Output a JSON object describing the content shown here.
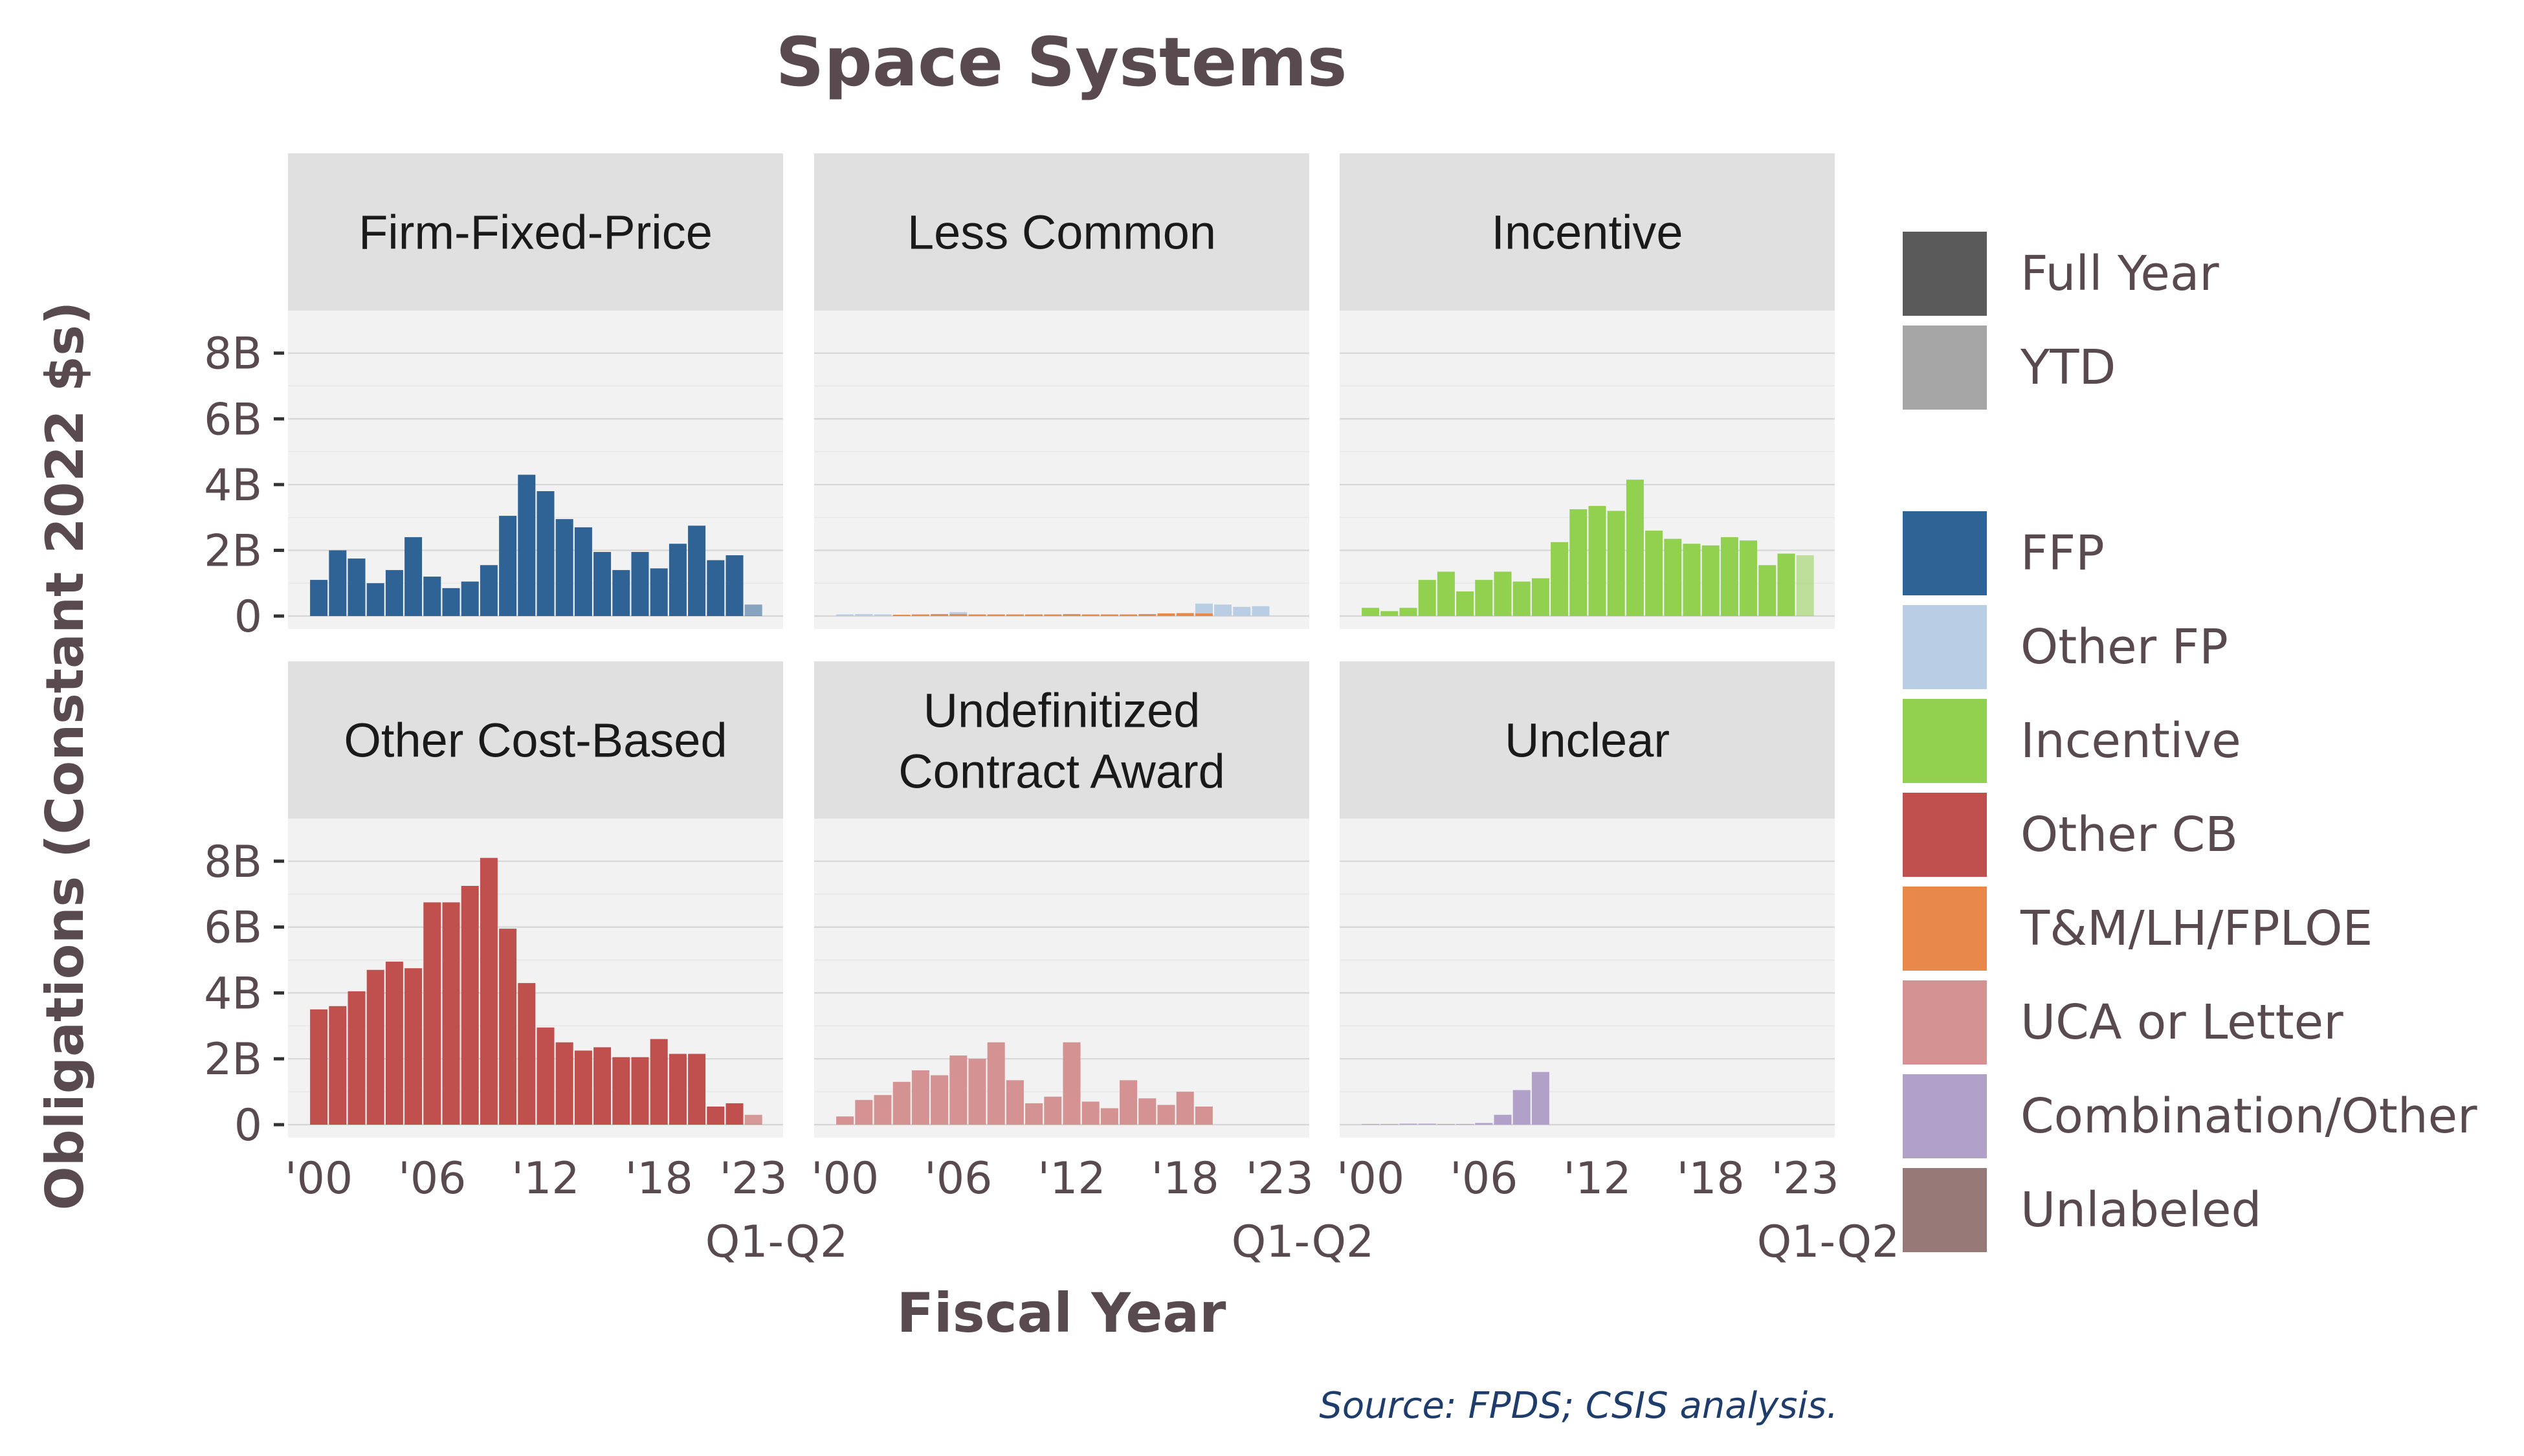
{
  "chart_data": {
    "type": "bar",
    "title": "Space Systems",
    "xlabel": "Fiscal Year",
    "ylabel": "Obligations (Constant 2022 $s)",
    "source": "Source: FPDS; CSIS analysis.",
    "ylim": [
      0,
      8.9
    ],
    "yticks": [
      0,
      2,
      4,
      6,
      8
    ],
    "ytick_labels": [
      "0",
      "2B",
      "4B",
      "6B",
      "8B"
    ],
    "xticks": [
      2000,
      2006,
      2012,
      2018,
      2023
    ],
    "xtick_labels": [
      "'00",
      "'06",
      "'12",
      "'18",
      "'23"
    ],
    "xtick_sublabel": "Q1-Q2",
    "years": [
      2000,
      2001,
      2002,
      2003,
      2004,
      2005,
      2006,
      2007,
      2008,
      2009,
      2010,
      2011,
      2012,
      2013,
      2014,
      2015,
      2016,
      2017,
      2018,
      2019,
      2020,
      2021,
      2022,
      2023
    ],
    "grid": true,
    "legend_position": "right",
    "legend_groups": [
      [
        {
          "label": "Full Year",
          "color": "#5a5a5a"
        },
        {
          "label": "YTD",
          "color": "#a6a6a6"
        }
      ],
      [
        {
          "label": "FFP",
          "color": "#2f6396"
        },
        {
          "label": "Other FP",
          "color": "#b9cde5"
        },
        {
          "label": "Incentive",
          "color": "#92d050"
        },
        {
          "label": "Other CB",
          "color": "#c0504d"
        },
        {
          "label": "T&M/LH/FPLOE",
          "color": "#e8894a"
        },
        {
          "label": "UCA or Letter",
          "color": "#d49292"
        },
        {
          "label": "Combination/Other",
          "color": "#b1a0c7"
        },
        {
          "label": "Unlabeled",
          "color": "#977977"
        }
      ]
    ],
    "panels": [
      {
        "title": "Firm-Fixed-Price",
        "series": [
          {
            "name": "FFP",
            "color": "#2f6396",
            "values": [
              1.1,
              2.0,
              1.75,
              1.0,
              1.4,
              2.4,
              1.2,
              0.85,
              1.05,
              1.55,
              3.05,
              4.3,
              3.8,
              2.95,
              2.7,
              1.95,
              1.4,
              1.95,
              1.45,
              2.2,
              2.75,
              1.7,
              1.85,
              0.35
            ]
          }
        ]
      },
      {
        "title": "Less Common",
        "series": [
          {
            "name": "Other FP",
            "color": "#b9cde5",
            "values": [
              0.05,
              0.06,
              0.05,
              0,
              0,
              0,
              0.12,
              0,
              0,
              0,
              0,
              0,
              0,
              0,
              0,
              0,
              0,
              0,
              0,
              0.38,
              0.35,
              0.28,
              0.3,
              0
            ]
          },
          {
            "name": "T&M/LH/FPLOE",
            "color": "#e8894a",
            "values": [
              0,
              0,
              0,
              0.04,
              0.05,
              0.06,
              0.06,
              0.05,
              0.05,
              0.05,
              0.05,
              0.05,
              0.06,
              0.05,
              0.05,
              0.05,
              0.06,
              0.08,
              0.09,
              0.08,
              0,
              0,
              0,
              0
            ]
          }
        ]
      },
      {
        "title": "Incentive",
        "series": [
          {
            "name": "Incentive",
            "color": "#92d050",
            "values": [
              0.25,
              0.15,
              0.25,
              1.1,
              1.35,
              0.75,
              1.1,
              1.35,
              1.05,
              1.15,
              2.25,
              3.25,
              3.35,
              3.2,
              4.15,
              2.6,
              2.35,
              2.2,
              2.15,
              2.4,
              2.3,
              1.55,
              1.9,
              1.85
            ]
          }
        ]
      },
      {
        "title": "Other Cost-Based",
        "series": [
          {
            "name": "Other CB",
            "color": "#c0504d",
            "values": [
              3.5,
              3.6,
              4.05,
              4.7,
              4.95,
              4.75,
              6.75,
              6.75,
              7.25,
              8.1,
              5.95,
              4.3,
              2.95,
              2.5,
              2.25,
              2.35,
              2.05,
              2.05,
              2.6,
              2.15,
              2.15,
              0.55,
              0.65,
              0.3
            ]
          }
        ]
      },
      {
        "title": "Undefinitized",
        "title2": "Contract Award",
        "series": [
          {
            "name": "UCA or Letter",
            "color": "#d49292",
            "values": [
              0.25,
              0.75,
              0.9,
              1.3,
              1.65,
              1.5,
              2.1,
              2.0,
              2.5,
              1.35,
              0.65,
              0.85,
              2.5,
              0.7,
              0.5,
              1.35,
              0.8,
              0.6,
              1.0,
              0.55,
              0,
              0,
              0,
              0
            ]
          }
        ]
      },
      {
        "title": "Unclear",
        "series": [
          {
            "name": "Combination/Other",
            "color": "#b1a0c7",
            "values": [
              0.02,
              0.02,
              0.03,
              0.03,
              0.02,
              0.02,
              0.05,
              0.3,
              1.05,
              1.6,
              0,
              0,
              0,
              0,
              0,
              0,
              0,
              0,
              0,
              0,
              0,
              0,
              0,
              0
            ]
          }
        ]
      }
    ]
  }
}
